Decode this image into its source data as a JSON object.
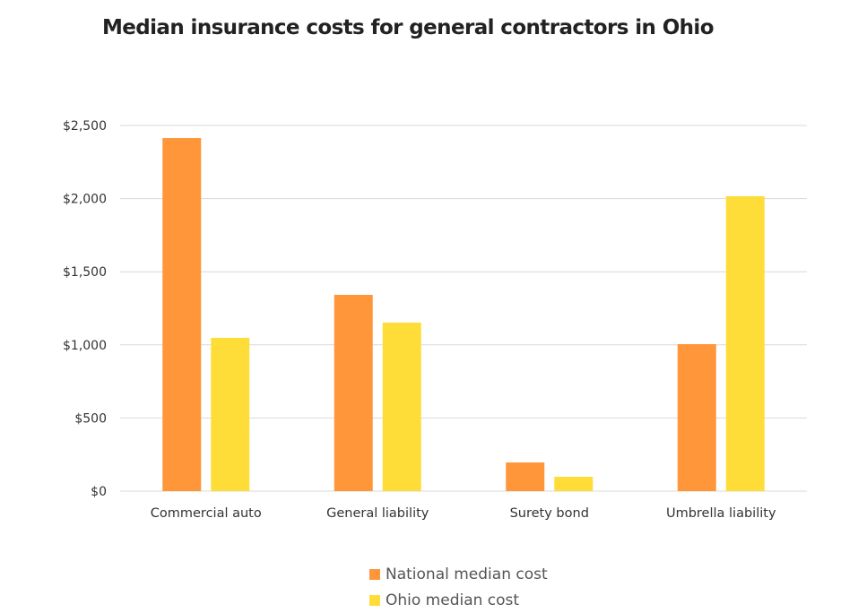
{
  "chart_data": {
    "type": "bar",
    "title": "Median insurance costs for general contractors in Ohio",
    "xlabel": "",
    "ylabel": "",
    "categories": [
      "Commercial auto",
      "General liability",
      "Surety bond",
      "Umbrella liability"
    ],
    "series": [
      {
        "name": "National median cost",
        "color": "#FF963A",
        "values": [
          2414,
          1342,
          196,
          1005
        ]
      },
      {
        "name": "Ohio median cost",
        "color": "#FFDD38",
        "values": [
          1048,
          1152,
          98,
          2016
        ]
      }
    ],
    "ylim": [
      0,
      2500
    ],
    "yticks": [
      0,
      500,
      1000,
      1500,
      2000,
      2500
    ],
    "ytick_labels": [
      "$0",
      "$500",
      "$1,000",
      "$1,500",
      "$2,000",
      "$2,500"
    ],
    "grid": true,
    "legend_position": "bottom-center"
  }
}
